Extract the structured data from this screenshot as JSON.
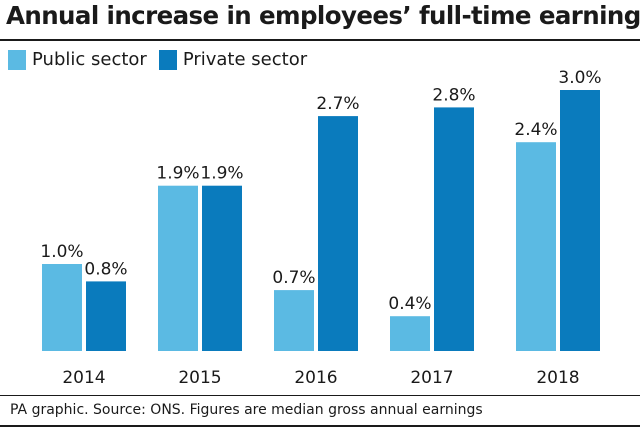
{
  "title": "Annual increase in employees’ full-time earnings",
  "source": "PA graphic. Source: ONS. Figures are median gross annual earnings",
  "colors": {
    "public": "#5bbae3",
    "private": "#0a7bbd"
  },
  "chart_data": {
    "type": "bar",
    "categories": [
      "2014",
      "2015",
      "2016",
      "2017",
      "2018"
    ],
    "series": [
      {
        "name": "Public sector",
        "values": [
          1.0,
          1.9,
          0.7,
          0.4,
          2.4
        ],
        "labels": [
          "1.0%",
          "1.9%",
          "0.7%",
          "0.4%",
          "2.4%"
        ]
      },
      {
        "name": "Private sector",
        "values": [
          0.8,
          1.9,
          2.7,
          2.8,
          3.0
        ],
        "labels": [
          "0.8%",
          "1.9%",
          "2.7%",
          "2.8%",
          "3.0%"
        ]
      }
    ],
    "ylim": [
      0,
      3.0
    ],
    "legend": "top-left",
    "grid": false
  }
}
